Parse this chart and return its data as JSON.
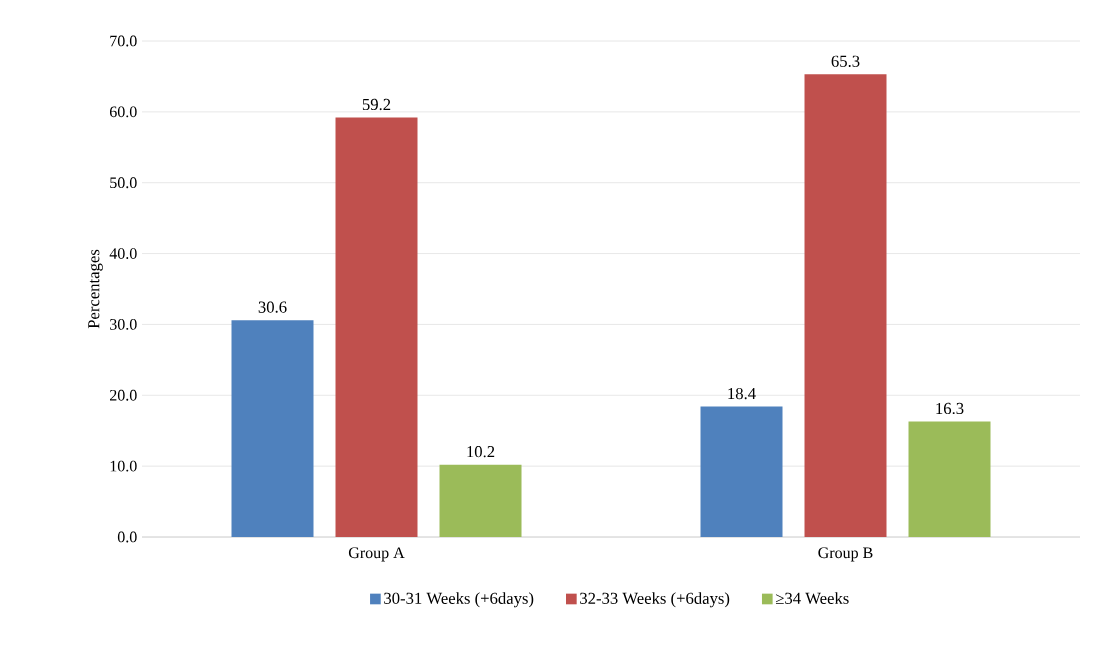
{
  "chart_data": {
    "type": "bar",
    "ylabel": "Percentages",
    "categories": [
      "Group A",
      "Group B"
    ],
    "series": [
      {
        "name": "30-31 Weeks (+6days)",
        "color": "#4f81bd",
        "values": [
          30.6,
          18.4
        ]
      },
      {
        "name": "32-33 Weeks (+6days)",
        "color": "#c0504d",
        "values": [
          59.2,
          65.3
        ]
      },
      {
        "name": "≥34 Weeks",
        "color": "#9bbb59",
        "values": [
          10.2,
          16.3
        ]
      }
    ],
    "ylim": [
      0,
      70
    ],
    "yticks": [
      {
        "value": 0,
        "label": "0.0"
      },
      {
        "value": 10,
        "label": "10.0"
      },
      {
        "value": 20,
        "label": "20.0"
      },
      {
        "value": 30,
        "label": "30.0"
      },
      {
        "value": 40,
        "label": "40.0"
      },
      {
        "value": 50,
        "label": "50.0"
      },
      {
        "value": 60,
        "label": "60.0"
      },
      {
        "value": 70,
        "label": "70.0"
      }
    ],
    "grid": "y",
    "legend": "bottom",
    "data_labels": true
  }
}
